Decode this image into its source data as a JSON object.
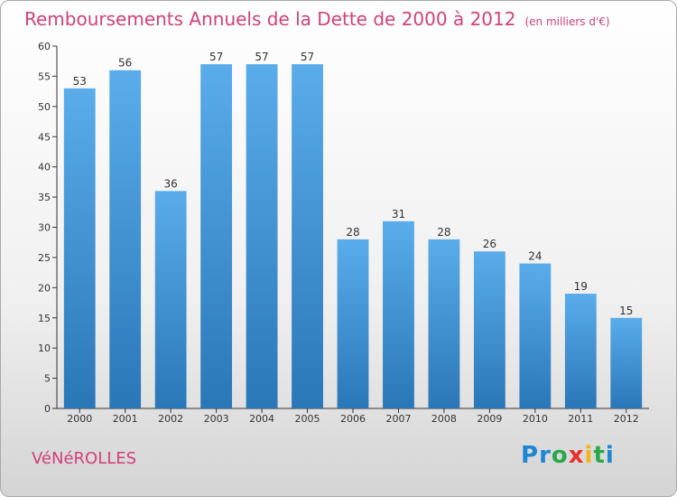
{
  "header": {
    "title": "Remboursements Annuels de la Dette de 2000 à 2012",
    "subtitle": "(en milliers d'€)"
  },
  "footer": {
    "commune": "VéNéROLLES",
    "logo_letters": [
      {
        "char": "P",
        "color": "#1e87d2"
      },
      {
        "char": "r",
        "color": "#1e87d2"
      },
      {
        "char": "o",
        "color": "#2aa84a"
      },
      {
        "char": "x",
        "color": "#e8332a"
      },
      {
        "char": "i",
        "color": "#f3b51c"
      },
      {
        "char": "t",
        "color": "#2aa84a"
      },
      {
        "char": "i",
        "color": "#1e87d2"
      }
    ]
  },
  "chart_data": {
    "type": "bar",
    "title": "Remboursements Annuels de la Dette de 2000 à 2012",
    "subtitle": "(en milliers d'€)",
    "xlabel": "",
    "ylabel": "",
    "categories": [
      "2000",
      "2001",
      "2002",
      "2003",
      "2004",
      "2005",
      "2006",
      "2007",
      "2008",
      "2009",
      "2010",
      "2011",
      "2012"
    ],
    "values": [
      53,
      56,
      36,
      57,
      57,
      57,
      28,
      31,
      28,
      26,
      24,
      19,
      15
    ],
    "ylim": [
      0,
      60
    ],
    "yticks": [
      0,
      5,
      10,
      15,
      20,
      25,
      30,
      35,
      40,
      45,
      50,
      55,
      60
    ],
    "grid": false,
    "legend": "none",
    "bar_color_top": "#5aacea",
    "bar_color_bottom": "#2a77b8"
  }
}
